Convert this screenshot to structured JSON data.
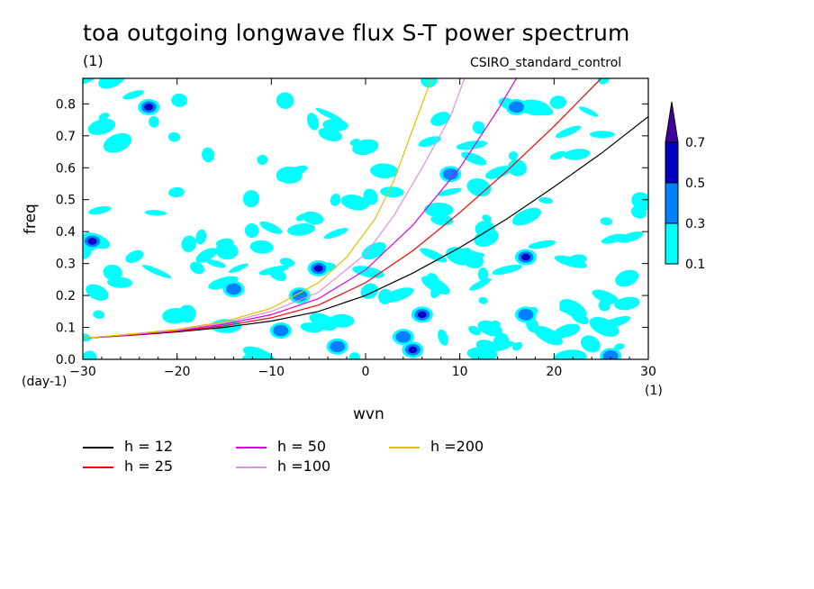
{
  "title": "toa outgoing longwave flux S-T power spectrum",
  "subtitle": "(1)",
  "caption": "CSIRO_standard_control",
  "chart_data": {
    "type": "heatmap",
    "xlabel": "wvn",
    "ylabel": "freq",
    "x_unit": "(1)",
    "y_unit": "(day-1)",
    "xlim": [
      -30,
      30
    ],
    "ylim": [
      0,
      0.88
    ],
    "xticks": [
      -30,
      -20,
      -10,
      0,
      10,
      20,
      30
    ],
    "yticks": [
      0.0,
      0.1,
      0.2,
      0.3,
      0.4,
      0.5,
      0.6,
      0.7,
      0.8
    ],
    "ytick_labels": [
      "0.0",
      "0.1",
      "0.2",
      "0.3",
      "0.4",
      "0.5",
      "0.6",
      "0.7",
      "0.8"
    ],
    "colorbar": {
      "levels": [
        "0.1",
        "0.3",
        "0.5",
        "0.7"
      ],
      "colors": [
        "#00ffff",
        "#0080ff",
        "#0000c0",
        "#4000a0"
      ]
    },
    "patches": [
      {
        "x": -23,
        "y": 0.79,
        "level": 2
      },
      {
        "x": -29,
        "y": 0.37,
        "level": 2
      },
      {
        "x": -5,
        "y": 0.285,
        "level": 2
      },
      {
        "x": -7,
        "y": 0.2,
        "level": 1
      },
      {
        "x": 6,
        "y": 0.14,
        "level": 3
      },
      {
        "x": 5,
        "y": 0.03,
        "level": 3
      },
      {
        "x": 17,
        "y": 0.32,
        "level": 2
      },
      {
        "x": 16,
        "y": 0.79,
        "level": 1
      },
      {
        "x": 9,
        "y": 0.58,
        "level": 1
      },
      {
        "x": -14,
        "y": 0.22,
        "level": 1
      },
      {
        "x": -9,
        "y": 0.09,
        "level": 1
      },
      {
        "x": -3,
        "y": 0.04,
        "level": 1
      },
      {
        "x": 17,
        "y": 0.14,
        "level": 1
      },
      {
        "x": 26,
        "y": 0.01,
        "level": 1
      },
      {
        "x": 4,
        "y": 0.07,
        "level": 1
      }
    ],
    "series": [
      {
        "name": "h = 12",
        "color": "#000000",
        "points": [
          [
            -30,
            0.066
          ],
          [
            -25,
            0.075
          ],
          [
            -20,
            0.086
          ],
          [
            -15,
            0.1
          ],
          [
            -10,
            0.12
          ],
          [
            -5,
            0.15
          ],
          [
            0,
            0.2
          ],
          [
            5,
            0.27
          ],
          [
            10,
            0.35
          ],
          [
            15,
            0.44
          ],
          [
            20,
            0.54
          ],
          [
            25,
            0.645
          ],
          [
            30,
            0.76
          ]
        ]
      },
      {
        "name": "h = 25",
        "color": "#ff0000",
        "points": [
          [
            -30,
            0.066
          ],
          [
            -25,
            0.076
          ],
          [
            -20,
            0.088
          ],
          [
            -15,
            0.105
          ],
          [
            -10,
            0.13
          ],
          [
            -5,
            0.17
          ],
          [
            0,
            0.24
          ],
          [
            5,
            0.34
          ],
          [
            10,
            0.46
          ],
          [
            15,
            0.59
          ],
          [
            20,
            0.73
          ],
          [
            24,
            0.85
          ],
          [
            25,
            0.88
          ]
        ]
      },
      {
        "name": "h = 50",
        "color": "#e000e0",
        "points": [
          [
            -30,
            0.066
          ],
          [
            -25,
            0.077
          ],
          [
            -20,
            0.09
          ],
          [
            -15,
            0.11
          ],
          [
            -10,
            0.14
          ],
          [
            -5,
            0.19
          ],
          [
            0,
            0.28
          ],
          [
            5,
            0.42
          ],
          [
            10,
            0.6
          ],
          [
            14,
            0.78
          ],
          [
            16,
            0.88
          ]
        ]
      },
      {
        "name": "h =100",
        "color": "#e090e0",
        "points": [
          [
            -30,
            0.066
          ],
          [
            -25,
            0.078
          ],
          [
            -20,
            0.092
          ],
          [
            -15,
            0.114
          ],
          [
            -10,
            0.15
          ],
          [
            -5,
            0.21
          ],
          [
            0,
            0.33
          ],
          [
            3,
            0.45
          ],
          [
            6,
            0.6
          ],
          [
            9,
            0.76
          ],
          [
            10.5,
            0.88
          ]
        ]
      },
      {
        "name": "h =200",
        "color": "#e0c000",
        "points": [
          [
            -30,
            0.066
          ],
          [
            -25,
            0.079
          ],
          [
            -20,
            0.094
          ],
          [
            -15,
            0.118
          ],
          [
            -10,
            0.16
          ],
          [
            -5,
            0.24
          ],
          [
            -2,
            0.32
          ],
          [
            1,
            0.44
          ],
          [
            3,
            0.56
          ],
          [
            5,
            0.72
          ],
          [
            7,
            0.88
          ]
        ]
      }
    ]
  }
}
